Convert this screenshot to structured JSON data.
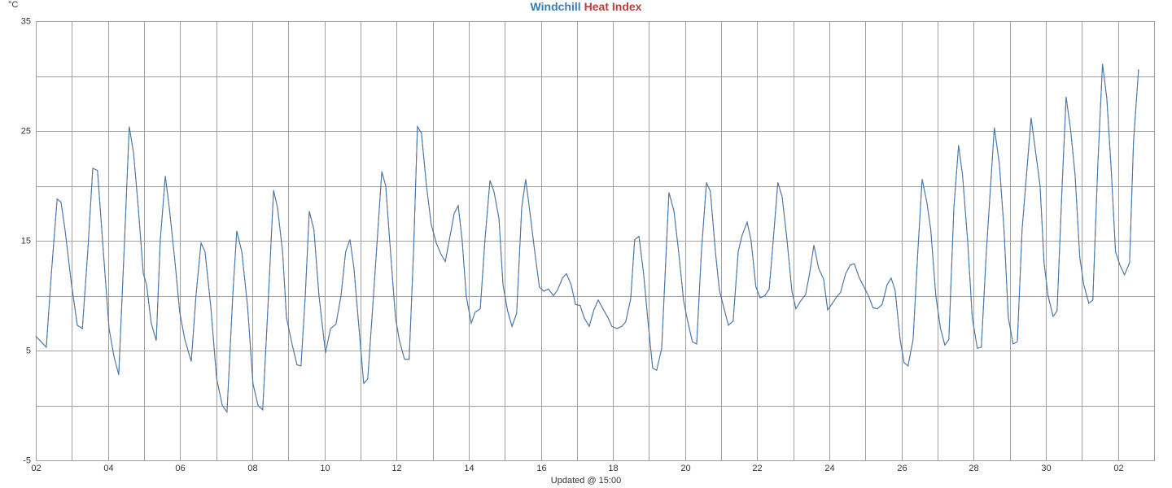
{
  "chart_data": {
    "type": "line",
    "y_unit": "°C",
    "x_label": "Updated @ 15:00",
    "x": [
      0.0,
      0.29,
      0.43,
      0.59,
      0.7,
      0.81,
      0.99,
      1.15,
      1.29,
      1.44,
      1.58,
      1.71,
      1.85,
      2.03,
      2.17,
      2.3,
      2.46,
      2.59,
      2.71,
      2.84,
      2.98,
      3.07,
      3.2,
      3.34,
      3.45,
      3.59,
      3.7,
      3.86,
      3.99,
      4.13,
      4.31,
      4.44,
      4.58,
      4.69,
      4.85,
      5.01,
      5.17,
      5.3,
      5.46,
      5.57,
      5.71,
      5.87,
      6.02,
      6.16,
      6.29,
      6.45,
      6.59,
      6.7,
      6.84,
      6.95,
      7.11,
      7.24,
      7.35,
      7.47,
      7.58,
      7.71,
      7.85,
      8.03,
      8.17,
      8.32,
      8.46,
      8.59,
      8.71,
      8.82,
      8.96,
      9.09,
      9.2,
      9.36,
      9.59,
      9.7,
      9.81,
      9.97,
      10.08,
      10.22,
      10.35,
      10.47,
      10.58,
      10.69,
      10.83,
      10.96,
      11.1,
      11.23,
      11.35,
      11.46,
      11.6,
      11.71,
      11.82,
      11.93,
      12.07,
      12.18,
      12.32,
      12.45,
      12.59,
      12.7,
      12.84,
      12.95,
      13.08,
      13.2,
      13.33,
      13.47,
      13.58,
      13.72,
      13.83,
      13.96,
      14.08,
      14.21,
      14.35,
      14.46,
      14.6,
      14.71,
      14.84,
      14.96,
      15.09,
      15.2,
      15.34,
      15.47,
      15.59,
      15.72,
      15.86,
      15.97,
      16.11,
      16.24,
      16.35,
      16.49,
      16.6,
      16.72,
      16.85,
      16.96,
      17.1,
      17.21,
      17.35,
      17.55,
      17.69,
      17.82,
      17.96,
      18.07,
      18.2,
      18.32,
      18.45,
      18.59,
      18.7,
      18.84,
      18.95,
      19.08,
      19.2,
      19.33,
      19.47,
      19.58,
      19.72,
      19.83,
      19.96,
      20.08,
      20.21,
      20.33,
      20.44,
      20.57,
      20.69,
      20.82,
      20.96,
      21.07,
      21.2,
      21.34,
      21.45,
      21.57,
      21.7,
      21.84,
      21.95,
      22.06,
      22.2,
      22.31,
      22.45,
      22.58,
      22.69,
      22.83,
      22.94,
      23.08,
      23.21,
      23.33,
      23.46,
      23.6,
      23.71,
      23.82,
      23.96,
      24.07,
      24.18,
      24.32,
      24.45,
      24.57,
      24.7,
      24.81,
      24.95,
      25.08,
      25.2,
      25.31,
      25.45,
      25.58,
      25.69,
      25.83,
      25.96,
      26.1,
      26.21,
      26.35,
      26.57,
      26.71,
      26.84,
      26.96,
      27.09,
      27.21,
      27.34,
      27.59,
      27.7,
      27.84,
      27.95,
      28.06,
      28.2,
      28.31,
      28.45,
      28.56,
      28.69,
      28.81,
      28.94,
      29.05,
      29.19,
      29.3,
      29.44,
      29.57,
      29.69,
      29.82,
      29.93,
      30.05,
      30.18,
      30.32,
      30.43,
      30.57
    ],
    "series": [
      {
        "name": "Heat Index",
        "color": "#b5403f",
        "values": [
          6.3,
          5.3,
          12,
          18.8,
          18.5,
          16,
          11,
          7.3,
          7,
          14,
          21.6,
          21.4,
          15,
          7,
          4.4,
          2.8,
          15,
          25.4,
          23,
          18,
          12,
          11,
          7.5,
          5.9,
          15,
          20.9,
          18,
          13,
          8.5,
          6,
          4,
          10,
          14.8,
          14,
          9,
          2.5,
          0,
          -0.6,
          10,
          15.9,
          14,
          9,
          2,
          0,
          -0.4,
          10,
          19.6,
          18,
          14,
          8,
          5.5,
          3.7,
          3.6,
          10,
          17.7,
          16,
          10,
          4.8,
          7,
          7.4,
          10,
          14,
          15.1,
          12.5,
          7,
          2,
          2.4,
          10,
          21.3,
          20,
          15,
          8,
          5.9,
          4.2,
          4.2,
          14,
          25.4,
          24.8,
          20,
          16.5,
          14.8,
          13.8,
          13.1,
          15,
          17.5,
          18.2,
          15,
          10,
          7.5,
          8.5,
          8.8,
          15,
          20.5,
          19.5,
          17,
          11,
          8.6,
          7.2,
          8.4,
          18,
          20.6,
          17,
          14,
          10.8,
          10.4,
          10.6,
          10,
          10.5,
          11.6,
          12,
          11,
          9.2,
          9.1,
          8,
          7.2,
          8.7,
          9.6,
          8.8,
          8,
          7.2,
          7,
          7.2,
          7.6,
          9.7,
          15.1,
          15.4,
          12,
          8,
          3.4,
          3.2,
          5.2,
          19.4,
          17.7,
          14,
          9.5,
          7.7,
          5.8,
          5.6,
          14,
          20.3,
          19.5,
          14,
          10.5,
          8.8,
          7.3,
          7.7,
          14,
          15.5,
          16.7,
          15,
          10.8,
          9.8,
          10,
          10.6,
          15,
          20.3,
          19,
          15.2,
          10.4,
          8.8,
          9.5,
          10.1,
          12,
          14.6,
          12.5,
          11.5,
          8.7,
          9.2,
          9.9,
          10.3,
          12,
          12.8,
          12.9,
          11.6,
          10.9,
          10,
          8.9,
          8.8,
          9.2,
          11,
          11.6,
          10.5,
          6,
          3.9,
          3.6,
          6,
          14,
          20.6,
          18.5,
          16,
          10,
          7,
          5.5,
          6,
          18,
          23.7,
          21,
          15,
          8,
          5.2,
          5.3,
          14,
          25.3,
          22,
          16,
          8,
          5.6,
          5.8,
          16,
          26.2,
          23.5,
          20,
          13,
          10,
          8.1,
          8.6,
          20,
          28.1,
          25,
          21,
          13.5,
          11,
          9.3,
          9.6,
          22,
          31.1,
          28,
          21,
          14,
          12.8,
          11.9,
          13,
          24,
          30.6
        ]
      },
      {
        "name": "Windchill",
        "color": "#3a7db3",
        "values": [
          6.3,
          5.3,
          12,
          18.8,
          18.5,
          16,
          11,
          7.3,
          7,
          14,
          21.6,
          21.4,
          15,
          7,
          4.4,
          2.8,
          15,
          25.4,
          23,
          18,
          12,
          11,
          7.5,
          5.9,
          15,
          20.9,
          18,
          13,
          8.5,
          6,
          4,
          10,
          14.8,
          14,
          9,
          2.5,
          0,
          -0.6,
          10,
          15.9,
          14,
          9,
          2,
          0,
          -0.4,
          10,
          19.6,
          18,
          14,
          8,
          5.5,
          3.7,
          3.6,
          10,
          17.7,
          16,
          10,
          4.8,
          7,
          7.4,
          10,
          14,
          15.1,
          12.5,
          7,
          2,
          2.4,
          10,
          21.3,
          20,
          15,
          8,
          5.9,
          4.2,
          4.2,
          14,
          25.4,
          24.8,
          20,
          16.5,
          14.8,
          13.8,
          13.1,
          15,
          17.5,
          18.2,
          15,
          10,
          7.5,
          8.5,
          8.8,
          15,
          20.5,
          19.5,
          17,
          11,
          8.6,
          7.2,
          8.4,
          18,
          20.6,
          17,
          14,
          10.8,
          10.4,
          10.6,
          10,
          10.5,
          11.6,
          12,
          11,
          9.2,
          9.1,
          8,
          7.2,
          8.7,
          9.6,
          8.8,
          8,
          7.2,
          7,
          7.2,
          7.6,
          9.7,
          15.1,
          15.4,
          12,
          8,
          3.4,
          3.2,
          5.2,
          19.4,
          17.7,
          14,
          9.5,
          7.7,
          5.8,
          5.6,
          14,
          20.3,
          19.5,
          14,
          10.5,
          8.8,
          7.3,
          7.7,
          14,
          15.5,
          16.7,
          15,
          10.8,
          9.8,
          10,
          10.6,
          15,
          20.3,
          19,
          15.2,
          10.4,
          8.8,
          9.5,
          10.1,
          12,
          14.6,
          12.5,
          11.5,
          8.7,
          9.2,
          9.9,
          10.3,
          12,
          12.8,
          12.9,
          11.6,
          10.9,
          10,
          8.9,
          8.8,
          9.2,
          11,
          11.6,
          10.5,
          6,
          3.9,
          3.6,
          6,
          14,
          20.6,
          18.5,
          16,
          10,
          7,
          5.5,
          6,
          18,
          23.7,
          21,
          15,
          8,
          5.2,
          5.3,
          14,
          25.3,
          22,
          16,
          8,
          5.6,
          5.8,
          16,
          26.2,
          23.5,
          20,
          13,
          10,
          8.1,
          8.6,
          20,
          28.1,
          25,
          21,
          13.5,
          11,
          9.3,
          9.6,
          22,
          31.1,
          28,
          21,
          14,
          12.8,
          11.9,
          13,
          24,
          30.6
        ]
      }
    ],
    "xlim": [
      0,
      31
    ],
    "xticks": [
      {
        "value": 0,
        "label": "02"
      },
      {
        "value": 2,
        "label": "04"
      },
      {
        "value": 4,
        "label": "06"
      },
      {
        "value": 6,
        "label": "08"
      },
      {
        "value": 8,
        "label": "10"
      },
      {
        "value": 10,
        "label": "12"
      },
      {
        "value": 12,
        "label": "14"
      },
      {
        "value": 14,
        "label": "16"
      },
      {
        "value": 16,
        "label": "18"
      },
      {
        "value": 18,
        "label": "20"
      },
      {
        "value": 20,
        "label": "22"
      },
      {
        "value": 22,
        "label": "24"
      },
      {
        "value": 24,
        "label": "26"
      },
      {
        "value": 26,
        "label": "28"
      },
      {
        "value": 28,
        "label": "30"
      },
      {
        "value": 30,
        "label": "02"
      }
    ],
    "xminor": [
      1,
      3,
      5,
      7,
      9,
      11,
      13,
      15,
      17,
      19,
      21,
      23,
      25,
      27,
      29
    ],
    "ylim": [
      -5,
      35
    ],
    "yticks": [
      -5,
      5,
      15,
      25,
      35
    ],
    "yminor": [
      0,
      10,
      20,
      30
    ],
    "grid": true
  }
}
